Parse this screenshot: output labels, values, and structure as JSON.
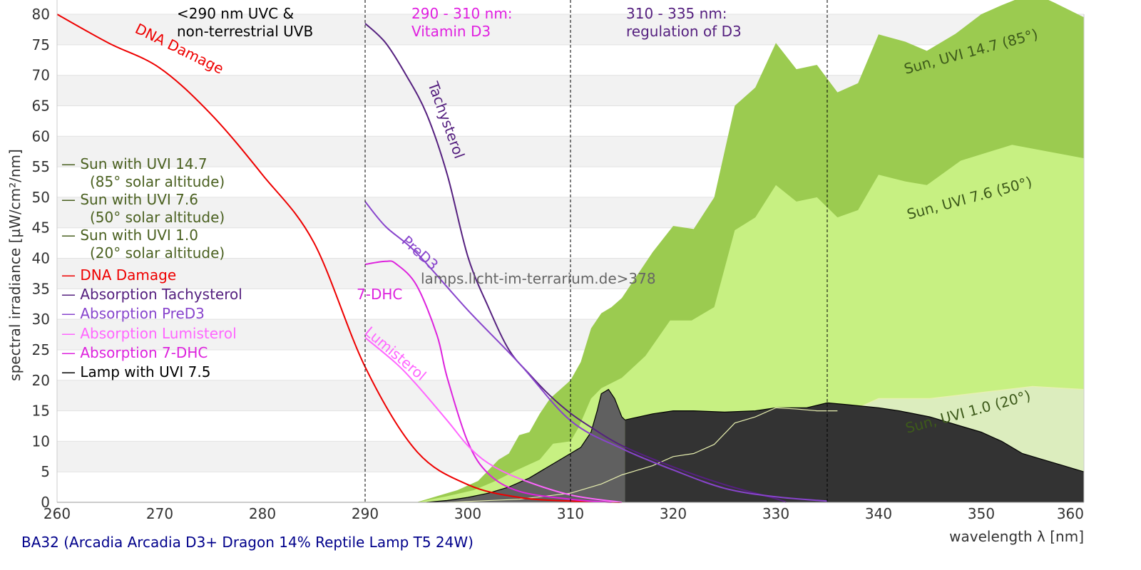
{
  "chart_data": {
    "type": "area",
    "title": "BA32 (Arcadia Arcadia D3+ Dragon 14% Reptile Lamp T5 24W)",
    "xlabel": "wavelength λ [nm]",
    "ylabel": "spectral irradiance [µW/cm²/nm]",
    "xlim": [
      260,
      360
    ],
    "ylim": [
      0,
      80
    ],
    "xticks": [
      260,
      270,
      280,
      290,
      300,
      310,
      320,
      330,
      340,
      350,
      360
    ],
    "yticks": [
      0,
      5,
      10,
      15,
      20,
      25,
      30,
      35,
      40,
      45,
      50,
      55,
      60,
      65,
      70,
      75,
      80
    ],
    "grid": true,
    "watermark": "lamps.licht-im-terrarium.de>378",
    "regions": [
      {
        "at": 290,
        "lines": [
          "<290 nm UVC &",
          "non-terrestrial UVB"
        ],
        "color": "#000000"
      },
      {
        "at": 310,
        "lines": [
          "290 - 310 nm:",
          "Vitamin D3"
        ],
        "color": "#e020e0"
      },
      {
        "at": 335,
        "lines": [
          "310 - 335 nm:",
          "regulation of D3"
        ],
        "color": "#55207f"
      }
    ],
    "legend": {
      "placement": "left",
      "entries": [
        {
          "lines": [
            "— Sun with UVI 14.7",
            "(85° solar altitude)"
          ],
          "color": "#4a6020"
        },
        {
          "lines": [
            "— Sun with UVI 7.6",
            "(50° solar altitude)"
          ],
          "color": "#4a6020"
        },
        {
          "lines": [
            "— Sun with UVI 1.0",
            "(20° solar altitude)"
          ],
          "color": "#4a6020"
        },
        {
          "lines": [
            "— DNA Damage"
          ],
          "color": "#ee0000"
        },
        {
          "lines": [
            "— Absorption Tachysterol"
          ],
          "color": "#55207f"
        },
        {
          "lines": [
            "— Absorption PreD3"
          ],
          "color": "#8844cc"
        },
        {
          "lines": [
            "— Absorption Lumisterol"
          ],
          "color": "#ff66ff"
        },
        {
          "lines": [
            "— Absorption 7-DHC"
          ],
          "color": "#dd22dd"
        },
        {
          "lines": [
            "— Lamp with UVI 7.5"
          ],
          "color": "#000000"
        }
      ]
    },
    "areas": [
      {
        "name": "Sun, UVI 14.7 (85°)",
        "color": "#9bcb50",
        "label_color": "#3d5a1a",
        "points": [
          [
            295,
            0
          ],
          [
            297,
            1
          ],
          [
            299,
            2
          ],
          [
            301,
            3.5
          ],
          [
            303,
            7
          ],
          [
            304,
            8
          ],
          [
            305,
            11
          ],
          [
            306,
            11.5
          ],
          [
            307,
            14.5
          ],
          [
            308,
            17
          ],
          [
            309,
            18.5
          ],
          [
            310,
            20
          ],
          [
            311,
            23
          ],
          [
            312,
            28.5
          ],
          [
            313,
            31
          ],
          [
            314,
            32
          ],
          [
            315,
            33.5
          ],
          [
            316,
            36
          ],
          [
            318,
            41
          ],
          [
            320,
            45.3
          ],
          [
            322,
            44.8
          ],
          [
            324,
            50
          ],
          [
            326,
            65
          ],
          [
            328,
            68
          ],
          [
            330,
            75.3
          ],
          [
            332,
            71
          ],
          [
            334,
            71.7
          ],
          [
            336,
            67.2
          ],
          [
            338,
            68.7
          ],
          [
            340,
            76.7
          ],
          [
            342.6,
            75.5
          ],
          [
            344.7,
            74
          ],
          [
            347.5,
            76.8
          ],
          [
            350,
            80
          ],
          [
            352,
            81.5
          ],
          [
            355,
            83.5
          ],
          [
            357,
            82
          ],
          [
            360,
            79.5
          ]
        ]
      },
      {
        "name": "Sun, UVI 7.6 (50°)",
        "color": "#c7f082",
        "label_color": "#3d5a1a",
        "points": [
          [
            295,
            0
          ],
          [
            298,
            1
          ],
          [
            300.6,
            2
          ],
          [
            302.7,
            3.5
          ],
          [
            304.8,
            5.3
          ],
          [
            307,
            7
          ],
          [
            308.3,
            9.6
          ],
          [
            310,
            10
          ],
          [
            310.8,
            12.3
          ],
          [
            312,
            17
          ],
          [
            313,
            18.7
          ],
          [
            315,
            20.4
          ],
          [
            317.3,
            24
          ],
          [
            319.7,
            29.8
          ],
          [
            321.8,
            29.8
          ],
          [
            324,
            32
          ],
          [
            326,
            44.6
          ],
          [
            328,
            46.7
          ],
          [
            330,
            52
          ],
          [
            332,
            49.3
          ],
          [
            334,
            50
          ],
          [
            336,
            46.7
          ],
          [
            338,
            47.9
          ],
          [
            340,
            53.7
          ],
          [
            342.6,
            52.6
          ],
          [
            344.7,
            52
          ],
          [
            348,
            56
          ],
          [
            353,
            58.6
          ],
          [
            360,
            56.4
          ]
        ]
      },
      {
        "name": "Sun, UVI 1.0 (20°)",
        "color": "#dcedbe",
        "label_color": "#3d5a1a",
        "points": [
          [
            298,
            0
          ],
          [
            305,
            0.5
          ],
          [
            310,
            1.5
          ],
          [
            313,
            3
          ],
          [
            315,
            4.5
          ],
          [
            318,
            6
          ],
          [
            320,
            7.5
          ],
          [
            322,
            8
          ],
          [
            324,
            9.5
          ],
          [
            326,
            13
          ],
          [
            328,
            14
          ],
          [
            330,
            15.5
          ],
          [
            332,
            15.3
          ],
          [
            334,
            15
          ],
          [
            336,
            15
          ],
          [
            338,
            15.5
          ],
          [
            340,
            17
          ],
          [
            345,
            17
          ],
          [
            350,
            18
          ],
          [
            355,
            19
          ],
          [
            360,
            18.5
          ]
        ]
      }
    ],
    "lamp": {
      "name": "Lamp with UVI 7.5",
      "color_uvb": "#606060",
      "color": "#333333",
      "split": 315.3,
      "points": [
        [
          296,
          0
        ],
        [
          298,
          0.3
        ],
        [
          300,
          0.8
        ],
        [
          302,
          1.5
        ],
        [
          304,
          2.5
        ],
        [
          306,
          4
        ],
        [
          308,
          6
        ],
        [
          310,
          8
        ],
        [
          311,
          9
        ],
        [
          312,
          11.5
        ],
        [
          312.6,
          15
        ],
        [
          313,
          17.8
        ],
        [
          313.7,
          18.5
        ],
        [
          314.3,
          17
        ],
        [
          315,
          14
        ],
        [
          315.3,
          13.5
        ],
        [
          318,
          14.5
        ],
        [
          320,
          15
        ],
        [
          322,
          15
        ],
        [
          325,
          14.8
        ],
        [
          328,
          15
        ],
        [
          330,
          15.5
        ],
        [
          333,
          15.5
        ],
        [
          335,
          16.3
        ],
        [
          337,
          16
        ],
        [
          340,
          15.5
        ],
        [
          342,
          15
        ],
        [
          345,
          14
        ],
        [
          348,
          12.5
        ],
        [
          350,
          11.5
        ],
        [
          352,
          10
        ],
        [
          354,
          8
        ],
        [
          356,
          7
        ],
        [
          358,
          6
        ],
        [
          360,
          5
        ]
      ]
    },
    "lines": [
      {
        "name": "DNA Damage",
        "color": "#ee0000",
        "points": [
          [
            260,
            80
          ],
          [
            265,
            75.3
          ],
          [
            270,
            71.2
          ],
          [
            275,
            63.6
          ],
          [
            280,
            53.7
          ],
          [
            285,
            42.6
          ],
          [
            290,
            22.2
          ],
          [
            295,
            8.4
          ],
          [
            300,
            2.9
          ],
          [
            305,
            0.8
          ],
          [
            310,
            0.2
          ],
          [
            315,
            0
          ]
        ]
      },
      {
        "name": "Tachysterol",
        "color": "#55207f",
        "points": [
          [
            290,
            78.5
          ],
          [
            292,
            75.3
          ],
          [
            294,
            70
          ],
          [
            296,
            63.6
          ],
          [
            298,
            53.7
          ],
          [
            300,
            40.3
          ],
          [
            302,
            32
          ],
          [
            304,
            25
          ],
          [
            306,
            21
          ],
          [
            308,
            17.5
          ],
          [
            310,
            14.6
          ],
          [
            312,
            12.3
          ],
          [
            315,
            9.3
          ],
          [
            320,
            5.8
          ],
          [
            325,
            2.9
          ],
          [
            330,
            0.6
          ],
          [
            331,
            0
          ]
        ]
      },
      {
        "name": "PreD3",
        "color": "#8844cc",
        "points": [
          [
            290,
            49.3
          ],
          [
            292,
            45.2
          ],
          [
            295,
            40.9
          ],
          [
            300,
            31.5
          ],
          [
            305,
            22.8
          ],
          [
            310,
            13.4
          ],
          [
            315,
            8.8
          ],
          [
            320,
            5.3
          ],
          [
            325,
            2.3
          ],
          [
            330,
            0.9
          ],
          [
            335,
            0.2
          ]
        ]
      },
      {
        "name": "7-DHC",
        "color": "#dd22dd",
        "points": [
          [
            290,
            39
          ],
          [
            292,
            39.5
          ],
          [
            293,
            39.1
          ],
          [
            295,
            35.6
          ],
          [
            297,
            27.4
          ],
          [
            298,
            20.4
          ],
          [
            300,
            9.9
          ],
          [
            302,
            4.7
          ],
          [
            305,
            1.8
          ],
          [
            310,
            0.5
          ],
          [
            314,
            0
          ]
        ]
      },
      {
        "name": "Lumisterol",
        "color": "#ff66ff",
        "points": [
          [
            290,
            27
          ],
          [
            293,
            22.8
          ],
          [
            295,
            19.3
          ],
          [
            298,
            13.4
          ],
          [
            300,
            9.3
          ],
          [
            302,
            6.4
          ],
          [
            305,
            3.9
          ],
          [
            310,
            1.2
          ],
          [
            315,
            0
          ]
        ]
      }
    ]
  }
}
